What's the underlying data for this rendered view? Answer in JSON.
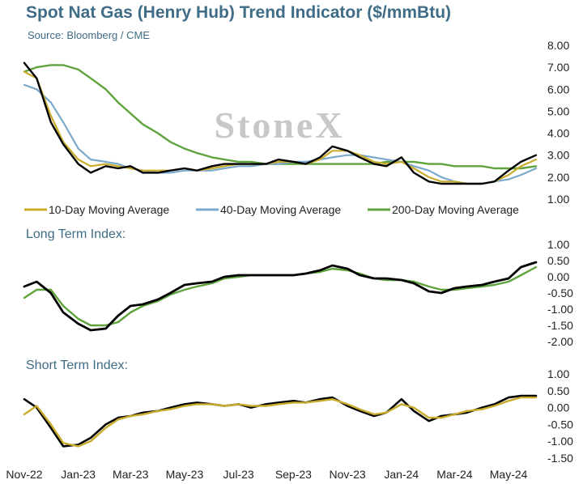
{
  "header": {
    "title": "Spot Nat Gas (Henry Hub) Trend Indicator ($/mmBtu)",
    "source": "Source: Bloomberg / CME",
    "watermark": "StoneX"
  },
  "colors": {
    "price": "#000000",
    "ma10": "#c9ac2c",
    "ma40": "#7aa9cc",
    "ma200": "#5fa33c",
    "title": "#3f6c86"
  },
  "chart_data": [
    {
      "type": "line",
      "x": [
        "2022-11-01",
        "2022-11-15",
        "2022-12-01",
        "2022-12-15",
        "2023-01-01",
        "2023-01-15",
        "2023-02-01",
        "2023-02-15",
        "2023-03-01",
        "2023-03-15",
        "2023-04-01",
        "2023-04-15",
        "2023-05-01",
        "2023-05-15",
        "2023-06-01",
        "2023-06-15",
        "2023-07-01",
        "2023-07-15",
        "2023-08-01",
        "2023-08-15",
        "2023-09-01",
        "2023-09-15",
        "2023-10-01",
        "2023-10-15",
        "2023-11-01",
        "2023-11-15",
        "2023-12-01",
        "2023-12-15",
        "2024-01-01",
        "2024-01-15",
        "2024-02-01",
        "2024-02-15",
        "2024-03-01",
        "2024-03-15",
        "2024-04-01",
        "2024-04-15",
        "2024-05-01",
        "2024-05-15",
        "2024-06-01"
      ],
      "series": [
        {
          "name": "Spot",
          "values": [
            7.2,
            6.5,
            4.5,
            3.5,
            2.6,
            2.2,
            2.5,
            2.4,
            2.5,
            2.2,
            2.2,
            2.3,
            2.4,
            2.3,
            2.5,
            2.6,
            2.6,
            2.6,
            2.6,
            2.8,
            2.7,
            2.6,
            2.9,
            3.4,
            3.2,
            2.9,
            2.6,
            2.5,
            2.9,
            2.2,
            1.8,
            1.7,
            1.7,
            1.7,
            1.7,
            1.8,
            2.3,
            2.7,
            3.0
          ]
        },
        {
          "name": "10-Day Moving Average",
          "values": [
            6.8,
            6.5,
            4.8,
            3.6,
            2.8,
            2.5,
            2.6,
            2.5,
            2.4,
            2.3,
            2.3,
            2.3,
            2.4,
            2.3,
            2.4,
            2.5,
            2.6,
            2.6,
            2.6,
            2.7,
            2.7,
            2.6,
            2.8,
            3.2,
            3.2,
            3.0,
            2.7,
            2.6,
            2.7,
            2.4,
            2.0,
            1.8,
            1.8,
            1.7,
            1.7,
            1.8,
            2.1,
            2.5,
            2.8
          ]
        },
        {
          "name": "40-Day Moving Average",
          "values": [
            6.2,
            6.0,
            5.4,
            4.5,
            3.3,
            2.8,
            2.7,
            2.6,
            2.4,
            2.3,
            2.2,
            2.2,
            2.3,
            2.3,
            2.3,
            2.4,
            2.5,
            2.5,
            2.6,
            2.6,
            2.7,
            2.7,
            2.8,
            2.9,
            3.0,
            3.0,
            2.9,
            2.8,
            2.7,
            2.5,
            2.3,
            2.0,
            1.8,
            1.7,
            1.7,
            1.8,
            1.9,
            2.1,
            2.4
          ]
        },
        {
          "name": "200-Day Moving Average",
          "values": [
            6.8,
            7.0,
            7.1,
            7.1,
            6.9,
            6.5,
            6.0,
            5.4,
            4.9,
            4.4,
            4.0,
            3.6,
            3.3,
            3.1,
            2.9,
            2.8,
            2.7,
            2.7,
            2.6,
            2.6,
            2.6,
            2.6,
            2.6,
            2.6,
            2.6,
            2.6,
            2.6,
            2.7,
            2.7,
            2.7,
            2.6,
            2.6,
            2.5,
            2.5,
            2.5,
            2.4,
            2.4,
            2.4,
            2.5
          ]
        }
      ],
      "yticks": [
        "8.00",
        "7.00",
        "6.00",
        "5.00",
        "4.00",
        "3.00",
        "2.00",
        "1.00"
      ],
      "ylim": [
        1.0,
        8.0
      ],
      "legend": [
        "10-Day Moving Average",
        "40-Day Moving Average",
        "200-Day Moving Average"
      ],
      "legend_position": "bottom"
    },
    {
      "type": "line",
      "title": "Long Term Index:",
      "x": [
        "2022-11-01",
        "2022-11-15",
        "2022-12-01",
        "2022-12-15",
        "2023-01-01",
        "2023-01-15",
        "2023-02-01",
        "2023-02-15",
        "2023-03-01",
        "2023-03-15",
        "2023-04-01",
        "2023-04-15",
        "2023-05-01",
        "2023-05-15",
        "2023-06-01",
        "2023-06-15",
        "2023-07-01",
        "2023-07-15",
        "2023-08-01",
        "2023-08-15",
        "2023-09-01",
        "2023-09-15",
        "2023-10-01",
        "2023-10-15",
        "2023-11-01",
        "2023-11-15",
        "2023-12-01",
        "2023-12-15",
        "2024-01-01",
        "2024-01-15",
        "2024-02-01",
        "2024-02-15",
        "2024-03-01",
        "2024-03-15",
        "2024-04-01",
        "2024-04-15",
        "2024-05-01",
        "2024-05-15",
        "2024-06-01"
      ],
      "series": [
        {
          "name": "Long Term Index (black)",
          "values": [
            -0.3,
            -0.15,
            -0.5,
            -1.1,
            -1.45,
            -1.65,
            -1.6,
            -1.2,
            -0.9,
            -0.85,
            -0.7,
            -0.5,
            -0.25,
            -0.2,
            -0.15,
            0.0,
            0.05,
            0.05,
            0.05,
            0.05,
            0.05,
            0.1,
            0.2,
            0.35,
            0.25,
            0.05,
            -0.05,
            -0.05,
            -0.1,
            -0.2,
            -0.45,
            -0.5,
            -0.35,
            -0.3,
            -0.25,
            -0.15,
            -0.05,
            0.3,
            0.45
          ]
        },
        {
          "name": "Long Term Index (green)",
          "values": [
            -0.65,
            -0.4,
            -0.4,
            -0.9,
            -1.3,
            -1.5,
            -1.5,
            -1.4,
            -1.1,
            -0.9,
            -0.75,
            -0.55,
            -0.4,
            -0.3,
            -0.2,
            -0.05,
            0.0,
            0.05,
            0.05,
            0.05,
            0.05,
            0.1,
            0.15,
            0.25,
            0.2,
            0.1,
            -0.05,
            -0.1,
            -0.1,
            -0.15,
            -0.3,
            -0.4,
            -0.4,
            -0.35,
            -0.3,
            -0.25,
            -0.15,
            0.05,
            0.3
          ]
        }
      ],
      "yticks": [
        "1.00",
        "0.50",
        "0.00",
        "-0.50",
        "-1.00",
        "-1.50",
        "-2.00"
      ],
      "ylim": [
        -2.0,
        1.0
      ]
    },
    {
      "type": "line",
      "title": "Short Term Index:",
      "x": [
        "2022-11-01",
        "2022-11-15",
        "2022-12-01",
        "2022-12-15",
        "2023-01-01",
        "2023-01-15",
        "2023-02-01",
        "2023-02-15",
        "2023-03-01",
        "2023-03-15",
        "2023-04-01",
        "2023-04-15",
        "2023-05-01",
        "2023-05-15",
        "2023-06-01",
        "2023-06-15",
        "2023-07-01",
        "2023-07-15",
        "2023-08-01",
        "2023-08-15",
        "2023-09-01",
        "2023-09-15",
        "2023-10-01",
        "2023-10-15",
        "2023-11-01",
        "2023-11-15",
        "2023-12-01",
        "2023-12-15",
        "2024-01-01",
        "2024-01-15",
        "2024-02-01",
        "2024-02-15",
        "2024-03-01",
        "2024-03-15",
        "2024-04-01",
        "2024-04-15",
        "2024-05-01",
        "2024-05-15",
        "2024-06-01"
      ],
      "series": [
        {
          "name": "Short Term Index (black)",
          "values": [
            0.25,
            0.0,
            -0.6,
            -1.15,
            -1.1,
            -0.9,
            -0.5,
            -0.3,
            -0.25,
            -0.15,
            -0.1,
            0.0,
            0.1,
            0.15,
            0.1,
            0.05,
            0.1,
            0.0,
            0.1,
            0.15,
            0.2,
            0.15,
            0.25,
            0.3,
            0.05,
            -0.1,
            -0.25,
            -0.15,
            0.25,
            -0.1,
            -0.4,
            -0.25,
            -0.2,
            -0.15,
            0.0,
            0.1,
            0.3,
            0.35,
            0.35
          ]
        },
        {
          "name": "Short Term Index (yellow)",
          "values": [
            -0.2,
            0.05,
            -0.5,
            -1.05,
            -1.15,
            -1.0,
            -0.6,
            -0.35,
            -0.25,
            -0.2,
            -0.1,
            -0.05,
            0.05,
            0.1,
            0.1,
            0.05,
            0.1,
            0.05,
            0.05,
            0.1,
            0.15,
            0.15,
            0.2,
            0.25,
            0.1,
            -0.05,
            -0.2,
            -0.15,
            0.1,
            0.0,
            -0.3,
            -0.3,
            -0.2,
            -0.1,
            -0.05,
            0.05,
            0.2,
            0.3,
            0.3
          ]
        }
      ],
      "yticks": [
        "1.00",
        "0.50",
        "0.00",
        "-0.50",
        "-1.00",
        "-1.50"
      ],
      "ylim": [
        -1.5,
        1.0
      ]
    }
  ],
  "x_axis": {
    "tick_labels": [
      "Nov-22",
      "Jan-23",
      "Mar-23",
      "May-23",
      "Jul-23",
      "Sep-23",
      "Nov-23",
      "Jan-24",
      "Mar-24",
      "May-24"
    ],
    "tick_dates": [
      "2022-11-01",
      "2023-01-01",
      "2023-03-01",
      "2023-05-01",
      "2023-07-01",
      "2023-09-01",
      "2023-11-01",
      "2024-01-01",
      "2024-03-01",
      "2024-05-01"
    ],
    "range": [
      "2022-11-01",
      "2024-06-01"
    ]
  }
}
